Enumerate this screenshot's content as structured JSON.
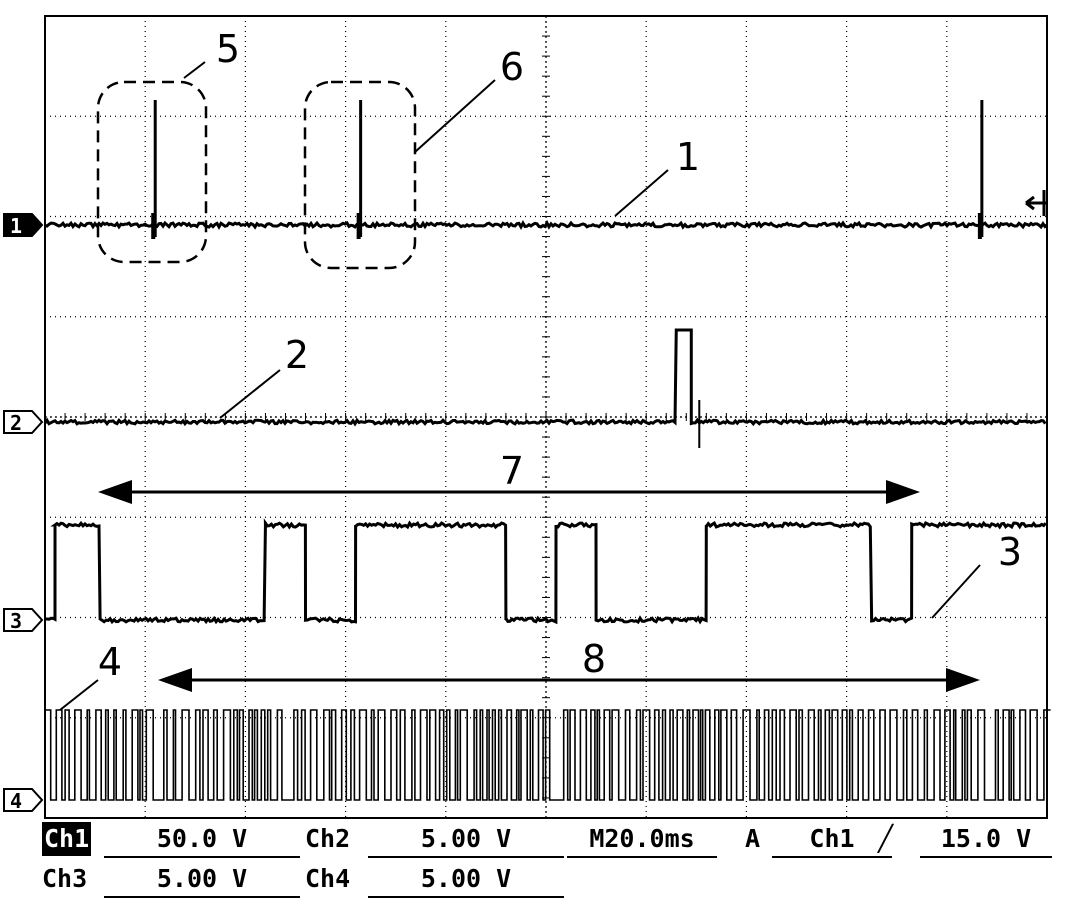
{
  "chart_data": {
    "type": "line",
    "title": "",
    "channel_markers": [
      "1",
      "2",
      "3",
      "4"
    ],
    "annotations": [
      "1",
      "2",
      "3",
      "4",
      "5",
      "6",
      "7",
      "8"
    ],
    "grid": true,
    "series": [
      {
        "marker": "1",
        "kind": "flat with short spikes",
        "spike_positions_div": [
          1.1,
          3.15,
          9.35
        ]
      },
      {
        "marker": "2",
        "kind": "flat with single pulse",
        "pulse_start_div": 6.3,
        "pulse_end_div": 6.45
      },
      {
        "marker": "3",
        "kind": "digital square wave",
        "transitions_div": [
          0.1,
          0.55,
          2.2,
          2.6,
          3.1,
          4.6,
          5.1,
          5.5,
          6.6,
          8.25,
          8.65
        ]
      },
      {
        "marker": "4",
        "kind": "dense pulse train",
        "gaps_div": [
          1.1,
          2.4,
          5.05,
          9.35
        ]
      }
    ]
  },
  "readouts": {
    "ch1_label": "Ch1",
    "ch1_scale": "50.0 V",
    "ch2_label": "Ch2",
    "ch2_scale": "5.00 V",
    "timebase": "M20.0ms",
    "trigger_mode": "A",
    "trigger_source": "Ch1",
    "trigger_slope": "╱",
    "trigger_level": "15.0 V",
    "ch3_label": "Ch3",
    "ch3_scale": "5.00 V",
    "ch4_label": "Ch4",
    "ch4_scale": "5.00 V"
  }
}
